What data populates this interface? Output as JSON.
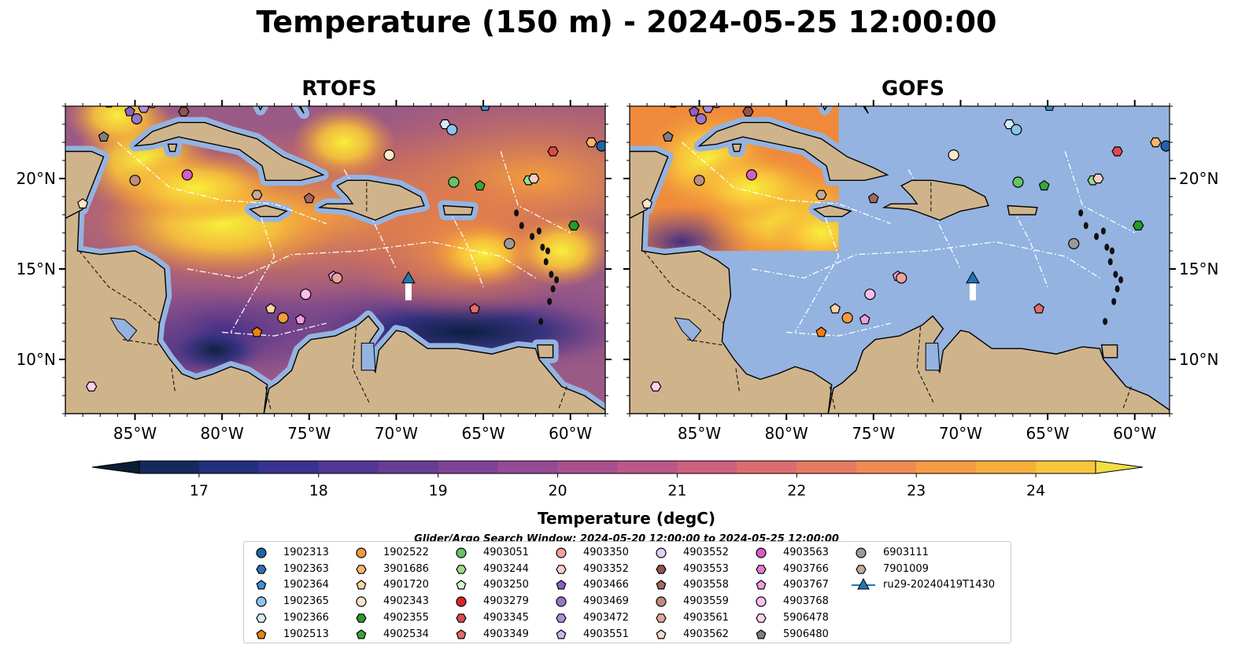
{
  "title": "Temperature (150 m) - 2024-05-25 12:00:00",
  "panels": [
    {
      "name": "rtofs",
      "title": "RTOFS"
    },
    {
      "name": "gofs",
      "title": "GOFS"
    }
  ],
  "map_extent": {
    "lon": [
      -89,
      -58
    ],
    "lat": [
      7,
      24
    ]
  },
  "lon_ticks": [
    {
      "value": -85,
      "label": "85°W"
    },
    {
      "value": -80,
      "label": "80°W"
    },
    {
      "value": -75,
      "label": "75°W"
    },
    {
      "value": -70,
      "label": "70°W"
    },
    {
      "value": -65,
      "label": "65°W"
    },
    {
      "value": -60,
      "label": "60°W"
    }
  ],
  "lat_ticks": [
    {
      "value": 10,
      "label": "10°N"
    },
    {
      "value": 15,
      "label": "15°N"
    },
    {
      "value": 20,
      "label": "20°N"
    }
  ],
  "colors": {
    "ocean": "#95b3e0",
    "land": "#cfb48b",
    "coast": "#000000",
    "border": "#111111"
  },
  "colorbar": {
    "label": "Temperature (degC)",
    "range": [
      16.5,
      24.5
    ],
    "step": 0.5,
    "ticks": [
      17,
      18,
      19,
      20,
      21,
      22,
      23,
      24
    ],
    "extend": "both",
    "colormap": "thermal"
  },
  "search_window": "Glider/Argo Search Window: 2024-05-20 12:00:00 to 2024-05-25 12:00:00",
  "legend": [
    {
      "label": "1902313",
      "marker": "circle",
      "color": "#1f63a8"
    },
    {
      "label": "1902363",
      "marker": "hexagon",
      "color": "#2e6fb5"
    },
    {
      "label": "1902364",
      "marker": "pentagon",
      "color": "#3d8fd6"
    },
    {
      "label": "1902365",
      "marker": "circle",
      "color": "#8cc4ee"
    },
    {
      "label": "1902366",
      "marker": "hexagon",
      "color": "#d5ebfb"
    },
    {
      "label": "1902513",
      "marker": "pentagon",
      "color": "#f07f10"
    },
    {
      "label": "1902522",
      "marker": "circle",
      "color": "#f39a3c"
    },
    {
      "label": "3901686",
      "marker": "hexagon",
      "color": "#f8b56d"
    },
    {
      "label": "4901720",
      "marker": "pentagon",
      "color": "#fbd3a5"
    },
    {
      "label": "4902343",
      "marker": "circle",
      "color": "#fde6cc"
    },
    {
      "label": "4902355",
      "marker": "hexagon",
      "color": "#2a9a2a"
    },
    {
      "label": "4902534",
      "marker": "pentagon",
      "color": "#3aa63a"
    },
    {
      "label": "4903051",
      "marker": "circle",
      "color": "#66c466"
    },
    {
      "label": "4903244",
      "marker": "hexagon",
      "color": "#98dc8c"
    },
    {
      "label": "4903250",
      "marker": "pentagon",
      "color": "#d6f6cf"
    },
    {
      "label": "4903279",
      "marker": "circle",
      "color": "#d62728"
    },
    {
      "label": "4903345",
      "marker": "hexagon",
      "color": "#dc4b4c"
    },
    {
      "label": "4903349",
      "marker": "pentagon",
      "color": "#e66a6a"
    },
    {
      "label": "4903350",
      "marker": "circle",
      "color": "#f2a09c"
    },
    {
      "label": "4903352",
      "marker": "hexagon",
      "color": "#f9cdc8"
    },
    {
      "label": "4903466",
      "marker": "pentagon",
      "color": "#8a62c4"
    },
    {
      "label": "4903469",
      "marker": "circle",
      "color": "#9b74cc"
    },
    {
      "label": "4903472",
      "marker": "hexagon",
      "color": "#b28ede"
    },
    {
      "label": "4903551",
      "marker": "pentagon",
      "color": "#cfb6ee"
    },
    {
      "label": "4903552",
      "marker": "circle",
      "color": "#e1d0f5"
    },
    {
      "label": "4903553",
      "marker": "hexagon",
      "color": "#8c564b"
    },
    {
      "label": "4903558",
      "marker": "pentagon",
      "color": "#a06a5e"
    },
    {
      "label": "4903559",
      "marker": "circle",
      "color": "#bf8a7f"
    },
    {
      "label": "4903561",
      "marker": "hexagon",
      "color": "#e0ab9c"
    },
    {
      "label": "4903562",
      "marker": "pentagon",
      "color": "#f7d8cc"
    },
    {
      "label": "4903563",
      "marker": "circle",
      "color": "#d45ec2"
    },
    {
      "label": "4903766",
      "marker": "hexagon",
      "color": "#e27bd0"
    },
    {
      "label": "4903767",
      "marker": "pentagon",
      "color": "#ef9ee0"
    },
    {
      "label": "4903768",
      "marker": "circle",
      "color": "#f8bff0"
    },
    {
      "label": "5906478",
      "marker": "hexagon",
      "color": "#fad2ee"
    },
    {
      "label": "5906480",
      "marker": "pentagon",
      "color": "#7f7f7f"
    },
    {
      "label": "6903111",
      "marker": "circle",
      "color": "#9a9a9a"
    },
    {
      "label": "7901009",
      "marker": "hexagon",
      "color": "#c3a99e"
    },
    {
      "label": "ru29-20240419T1430",
      "marker": "triangle-line",
      "color": "#1f77b4"
    }
  ],
  "floats": [
    {
      "lon": -84.5,
      "lat": 23.9,
      "color": "#b28ede",
      "marker": "hexagon"
    },
    {
      "lon": -84.0,
      "lat": 24.2,
      "color": "#e1d0f5",
      "marker": "circle"
    },
    {
      "lon": -82.2,
      "lat": 23.7,
      "color": "#8c564b",
      "marker": "hexagon"
    },
    {
      "lon": -86.5,
      "lat": 24.2,
      "color": "#dc4b4c",
      "marker": "hexagon"
    },
    {
      "lon": -85.3,
      "lat": 23.7,
      "color": "#8a62c4",
      "marker": "pentagon"
    },
    {
      "lon": -84.9,
      "lat": 23.3,
      "color": "#9b74cc",
      "marker": "circle"
    },
    {
      "lon": -86.8,
      "lat": 22.3,
      "color": "#7f7f7f",
      "marker": "pentagon"
    },
    {
      "lon": -85.0,
      "lat": 19.9,
      "color": "#bf8a7f",
      "marker": "circle"
    },
    {
      "lon": -82.0,
      "lat": 20.2,
      "color": "#d45ec2",
      "marker": "circle"
    },
    {
      "lon": -88.0,
      "lat": 18.6,
      "color": "#fde6cc",
      "marker": "pentagon"
    },
    {
      "lon": -78.0,
      "lat": 19.1,
      "color": "#c3a99e",
      "marker": "hexagon"
    },
    {
      "lon": -75.0,
      "lat": 18.9,
      "color": "#a06a5e",
      "marker": "pentagon"
    },
    {
      "lon": -70.4,
      "lat": 21.3,
      "color": "#fde6cc",
      "marker": "circle"
    },
    {
      "lon": -67.2,
      "lat": 23.0,
      "color": "#d5ebfb",
      "marker": "hexagon"
    },
    {
      "lon": -66.8,
      "lat": 22.7,
      "color": "#8cc4ee",
      "marker": "circle"
    },
    {
      "lon": -64.9,
      "lat": 24.0,
      "color": "#3d8fd6",
      "marker": "pentagon"
    },
    {
      "lon": -61.0,
      "lat": 21.5,
      "color": "#dc4b4c",
      "marker": "hexagon"
    },
    {
      "lon": -58.8,
      "lat": 22.0,
      "color": "#f8b56d",
      "marker": "hexagon"
    },
    {
      "lon": -58.2,
      "lat": 21.8,
      "color": "#1f63a8",
      "marker": "circle"
    },
    {
      "lon": -66.7,
      "lat": 19.8,
      "color": "#66c466",
      "marker": "circle"
    },
    {
      "lon": -65.2,
      "lat": 19.6,
      "color": "#3aa63a",
      "marker": "pentagon"
    },
    {
      "lon": -62.4,
      "lat": 19.9,
      "color": "#98dc8c",
      "marker": "hexagon"
    },
    {
      "lon": -62.1,
      "lat": 20.0,
      "color": "#f9cdc8",
      "marker": "hexagon"
    },
    {
      "lon": -59.8,
      "lat": 17.4,
      "color": "#2a9a2a",
      "marker": "hexagon"
    },
    {
      "lon": -63.5,
      "lat": 16.4,
      "color": "#9a9a9a",
      "marker": "circle"
    },
    {
      "lon": -73.6,
      "lat": 14.6,
      "color": "#ef9ee0",
      "marker": "pentagon"
    },
    {
      "lon": -73.4,
      "lat": 14.5,
      "color": "#f2a09c",
      "marker": "circle"
    },
    {
      "lon": -75.2,
      "lat": 13.6,
      "color": "#f8bff0",
      "marker": "circle"
    },
    {
      "lon": -77.2,
      "lat": 12.8,
      "color": "#fbd3a5",
      "marker": "pentagon"
    },
    {
      "lon": -76.5,
      "lat": 12.3,
      "color": "#f39a3c",
      "marker": "circle"
    },
    {
      "lon": -75.5,
      "lat": 12.2,
      "color": "#ef9ee0",
      "marker": "pentagon"
    },
    {
      "lon": -78.0,
      "lat": 11.5,
      "color": "#f07f10",
      "marker": "pentagon"
    },
    {
      "lon": -65.5,
      "lat": 12.8,
      "color": "#e66a6a",
      "marker": "pentagon"
    },
    {
      "lon": -87.5,
      "lat": 8.5,
      "color": "#fad2ee",
      "marker": "hexagon"
    }
  ],
  "glider": {
    "lon": -69.3,
    "lat": 14.4,
    "color": "#1f77b4"
  }
}
